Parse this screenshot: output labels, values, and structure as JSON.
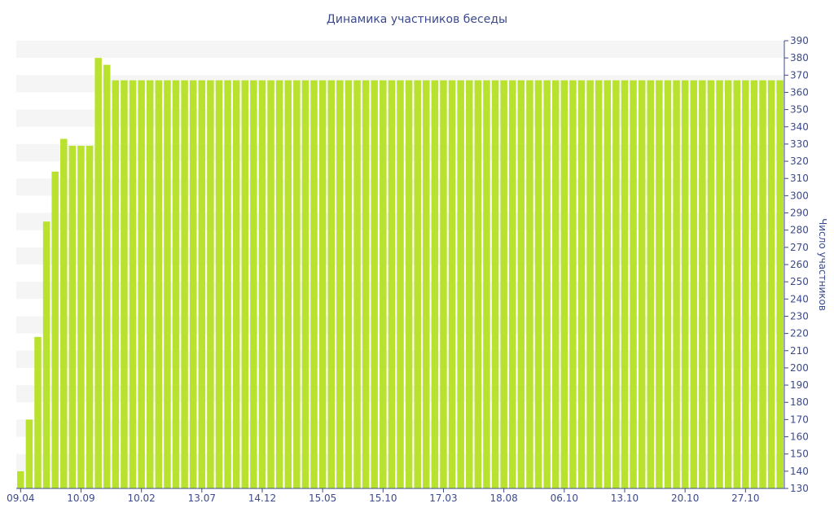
{
  "colors": {
    "bar": "#b9e22e",
    "band": "#f5f5f5",
    "axis": "#3b4a8c",
    "text": "#3b4a8c"
  },
  "chart_data": {
    "type": "bar",
    "title": "Динамика участников беседы",
    "xlabel": "",
    "ylabel": "Число участников",
    "ylim": [
      130,
      390
    ],
    "y_axis_side": "right",
    "yticks": [
      130,
      140,
      150,
      160,
      170,
      180,
      190,
      200,
      210,
      220,
      230,
      240,
      250,
      260,
      270,
      280,
      290,
      300,
      310,
      320,
      330,
      340,
      350,
      360,
      370,
      380,
      390
    ],
    "x_tick_labels": [
      "09.04",
      "10.09",
      "10.02",
      "13.07",
      "14.12",
      "15.05",
      "15.10",
      "17.03",
      "18.08",
      "06.10",
      "13.10",
      "20.10",
      "27.10"
    ],
    "x_tick_positions": [
      0,
      7,
      14,
      21,
      28,
      35,
      42,
      49,
      56,
      63,
      70,
      77,
      84
    ],
    "values": [
      140,
      170,
      218,
      285,
      314,
      333,
      329,
      329,
      329,
      380,
      376,
      367,
      367,
      367,
      367,
      367,
      367,
      367,
      367,
      367,
      367,
      367,
      367,
      367,
      367,
      367,
      367,
      367,
      367,
      367,
      367,
      367,
      367,
      367,
      367,
      367,
      367,
      367,
      367,
      367,
      367,
      367,
      367,
      367,
      367,
      367,
      367,
      367,
      367,
      367,
      367,
      367,
      367,
      367,
      367,
      367,
      367,
      367,
      367,
      367,
      367,
      367,
      367,
      367,
      367,
      367,
      367,
      367,
      367,
      367,
      367,
      367,
      367,
      367,
      367,
      367,
      367,
      367,
      367,
      367,
      367,
      367,
      367,
      367,
      367,
      367,
      367,
      367,
      367
    ],
    "grid": "alternating horizontal bands"
  }
}
